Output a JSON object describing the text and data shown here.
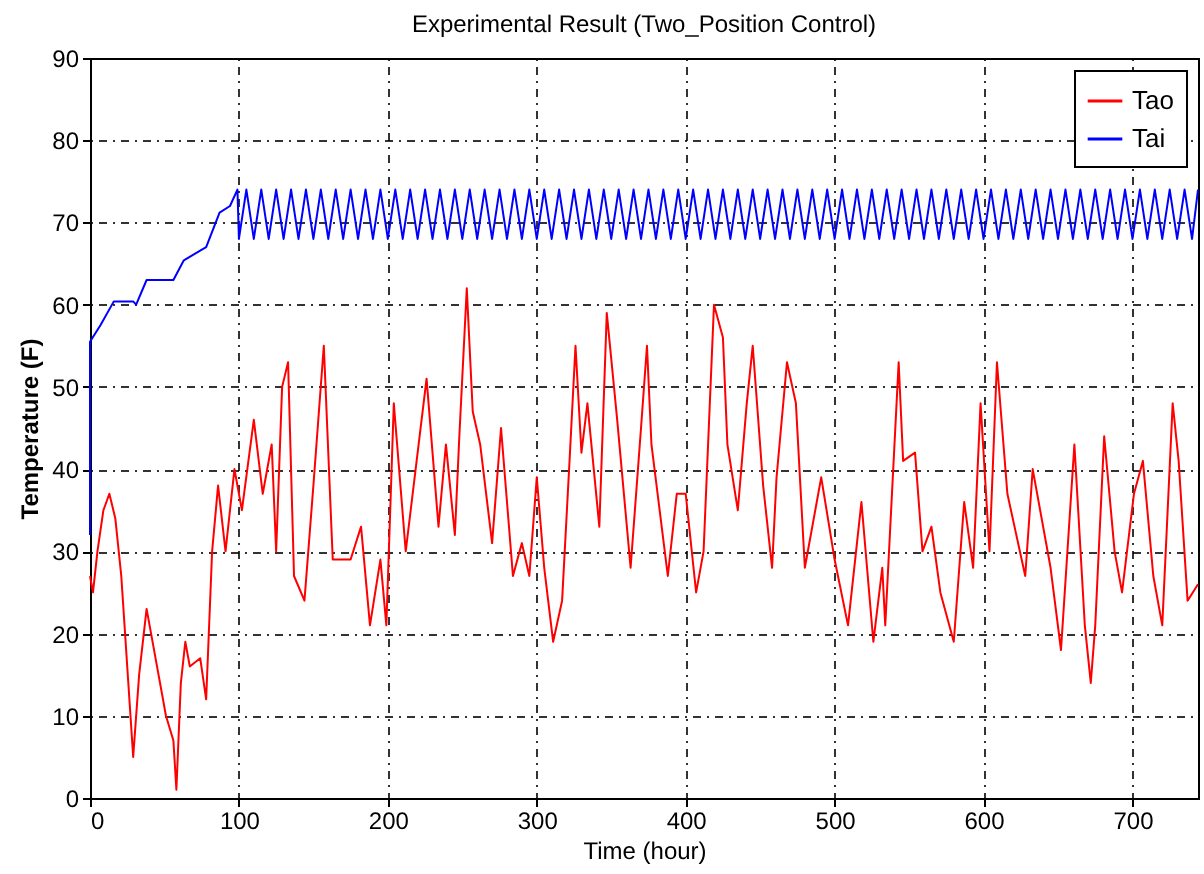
{
  "chart_data": {
    "type": "line",
    "title": "Experimental Result (Two_Position Control)",
    "xlabel": "Time (hour)",
    "ylabel": "Temperature (F)",
    "xlim": [
      0,
      744
    ],
    "xticks": [
      0,
      100,
      200,
      300,
      400,
      500,
      600,
      700
    ],
    "ylim": [
      0,
      90
    ],
    "yticks": [
      0,
      10,
      20,
      30,
      40,
      50,
      60,
      70,
      80,
      90
    ],
    "grid": true,
    "legend": "top right",
    "series": [
      {
        "name": "Tao",
        "color": "#ff0000",
        "x": [
          0,
          2,
          5,
          9,
          13,
          17,
          21,
          29,
          33,
          38,
          45,
          51,
          56,
          58,
          61,
          64,
          67,
          74,
          78,
          82,
          86,
          91,
          97,
          102,
          110,
          116,
          122,
          125,
          129,
          133,
          137,
          144,
          150,
          157,
          163,
          175,
          182,
          188,
          195,
          199,
          204,
          212,
          220,
          226,
          234,
          239,
          245,
          248,
          253,
          257,
          262,
          270,
          276,
          284,
          290,
          295,
          300,
          305,
          311,
          317,
          322,
          326,
          330,
          334,
          342,
          347,
          354,
          363,
          370,
          374,
          377,
          388,
          394,
          400,
          407,
          412,
          419,
          425,
          428,
          435,
          441,
          445,
          452,
          458,
          461,
          468,
          474,
          480,
          491,
          500,
          509,
          518,
          526,
          532,
          534,
          543,
          546,
          554,
          559,
          565,
          571,
          580,
          587,
          593,
          598,
          604,
          609,
          616,
          628,
          633,
          645,
          652,
          661,
          668,
          672,
          675,
          681,
          688,
          693,
          701,
          707,
          714,
          720,
          727,
          731,
          737,
          744
        ],
        "values": [
          27,
          25,
          30,
          35,
          37,
          34,
          27,
          5,
          15,
          23,
          16,
          10,
          7,
          1,
          14,
          19,
          16,
          17,
          12,
          30,
          38,
          30,
          40,
          35,
          46,
          37,
          43,
          30,
          50,
          53,
          27,
          24,
          38,
          55,
          29,
          29,
          33,
          21,
          29,
          21,
          48,
          30,
          42,
          51,
          33,
          43,
          32,
          44,
          62,
          47,
          43,
          31,
          45,
          27,
          31,
          27,
          39,
          28,
          19,
          24,
          41,
          55,
          42,
          48,
          33,
          59,
          46,
          28,
          45,
          55,
          43,
          27,
          37,
          37,
          25,
          30,
          60,
          56,
          43,
          35,
          48,
          55,
          38,
          28,
          39,
          53,
          48,
          28,
          39,
          29,
          21,
          36,
          19,
          28,
          21,
          53,
          41,
          42,
          30,
          33,
          25,
          19,
          36,
          28,
          48,
          30,
          53,
          37,
          27,
          40,
          28,
          18,
          43,
          21,
          14,
          21,
          44,
          30,
          25,
          37,
          41,
          27,
          21,
          48,
          41,
          24,
          26
        ]
      },
      {
        "name": "Tai",
        "color": "#0000ff",
        "x": [
          0,
          0,
          7,
          16,
          29,
          31,
          38,
          56,
          63,
          78,
          87,
          94,
          99,
          100,
          105,
          110,
          115,
          120,
          125,
          130,
          135,
          140,
          145,
          150,
          155,
          160,
          165,
          170,
          175,
          180,
          185,
          190,
          195,
          200,
          205,
          210,
          215,
          220,
          225,
          230,
          235,
          240,
          245,
          250,
          255,
          260,
          265,
          270,
          275,
          280,
          285,
          290,
          295,
          300,
          305,
          310,
          315,
          320,
          325,
          330,
          335,
          340,
          345,
          350,
          355,
          360,
          365,
          370,
          375,
          380,
          385,
          390,
          395,
          400,
          405,
          410,
          415,
          420,
          425,
          430,
          435,
          440,
          445,
          450,
          455,
          460,
          465,
          470,
          475,
          480,
          485,
          490,
          495,
          500,
          505,
          510,
          515,
          520,
          525,
          530,
          535,
          540,
          545,
          550,
          555,
          560,
          565,
          570,
          575,
          580,
          585,
          590,
          595,
          600,
          605,
          610,
          615,
          620,
          625,
          630,
          635,
          640,
          645,
          650,
          655,
          660,
          665,
          670,
          675,
          680,
          685,
          690,
          695,
          700,
          705,
          710,
          715,
          720,
          725,
          730,
          735,
          740,
          744
        ],
        "values": [
          32,
          55.5,
          57.5,
          60.4,
          60.4,
          60,
          63,
          63,
          65.4,
          67,
          71.2,
          72,
          74,
          68,
          74,
          68,
          74,
          68,
          74,
          68,
          74,
          68,
          74,
          68,
          74,
          68,
          74,
          68,
          74,
          68,
          74,
          68,
          74,
          68,
          74,
          68,
          74,
          68,
          74,
          68,
          74,
          68,
          74,
          68,
          74,
          68,
          74,
          68,
          74,
          68,
          74,
          68,
          74,
          68,
          74,
          68,
          74,
          68,
          74,
          68,
          74,
          68,
          74,
          68,
          74,
          68,
          74,
          68,
          74,
          68,
          74,
          68,
          74,
          68,
          74,
          68,
          74,
          68,
          74,
          68,
          74,
          68,
          74,
          68,
          74,
          68,
          74,
          68,
          74,
          68,
          74,
          68,
          74,
          68,
          74,
          68,
          74,
          68,
          74,
          68,
          74,
          68,
          74,
          68,
          74,
          68,
          74,
          68,
          74,
          68,
          74,
          68,
          74,
          68,
          74,
          68,
          74,
          68,
          74,
          68,
          74,
          68,
          74,
          68,
          74,
          68,
          74,
          68,
          74,
          68,
          74,
          68,
          74,
          68,
          74,
          68,
          74,
          68,
          74,
          68,
          74,
          68,
          74
        ]
      }
    ]
  }
}
